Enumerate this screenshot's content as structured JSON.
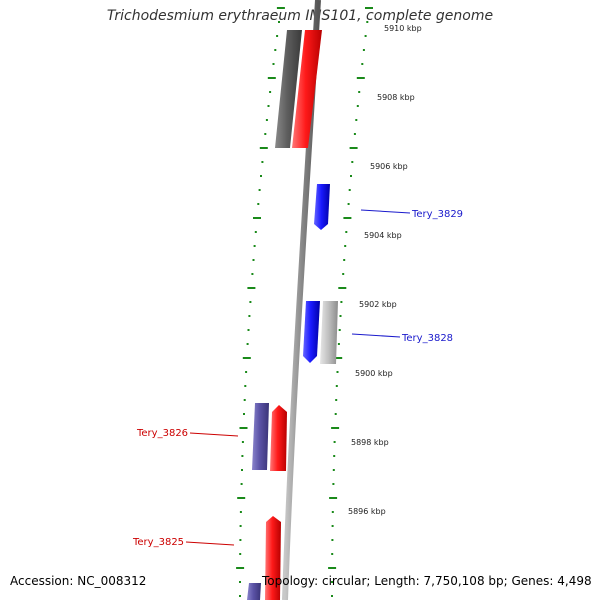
{
  "title": "Trichodesmium erythraeum IMS101, complete genome",
  "footer": {
    "accession": "Accession: NC_008312",
    "summary": "Topology: circular; Length: 7,750,108 bp; Genes: 4,498"
  },
  "colors": {
    "backbone": "#8a8a8a",
    "tick": "#1a8a1a",
    "forward_gene": "#ff1a1a",
    "reverse_gene": "#5b53a6",
    "highlight_gene": "#1a1aff",
    "other_gene": "#9c9c9c",
    "label_blue": "#1a1acc",
    "label_red": "#cc0000"
  },
  "scale": {
    "unit": "kbp",
    "tick_labels": [
      "5910 kbp",
      "5908 kbp",
      "5906 kbp",
      "5904 kbp",
      "5902 kbp",
      "5900 kbp",
      "5898 kbp",
      "5896 kbp"
    ]
  },
  "genes": [
    {
      "id": "upper-gray",
      "kind": "other",
      "label": ""
    },
    {
      "id": "upper-red",
      "kind": "forward",
      "label": ""
    },
    {
      "id": "tery-3829",
      "kind": "highlight",
      "label": "Tery_3829"
    },
    {
      "id": "tery-3828-blue",
      "kind": "highlight",
      "label": "Tery_3828"
    },
    {
      "id": "tery-3828-gray",
      "kind": "other",
      "label": ""
    },
    {
      "id": "tery-3826-purple",
      "kind": "reverse",
      "label": ""
    },
    {
      "id": "tery-3826-red",
      "kind": "forward",
      "label": "Tery_3826"
    },
    {
      "id": "tery-3825",
      "kind": "forward",
      "label": "Tery_3825"
    },
    {
      "id": "bottom-purple",
      "kind": "reverse",
      "label": ""
    }
  ]
}
